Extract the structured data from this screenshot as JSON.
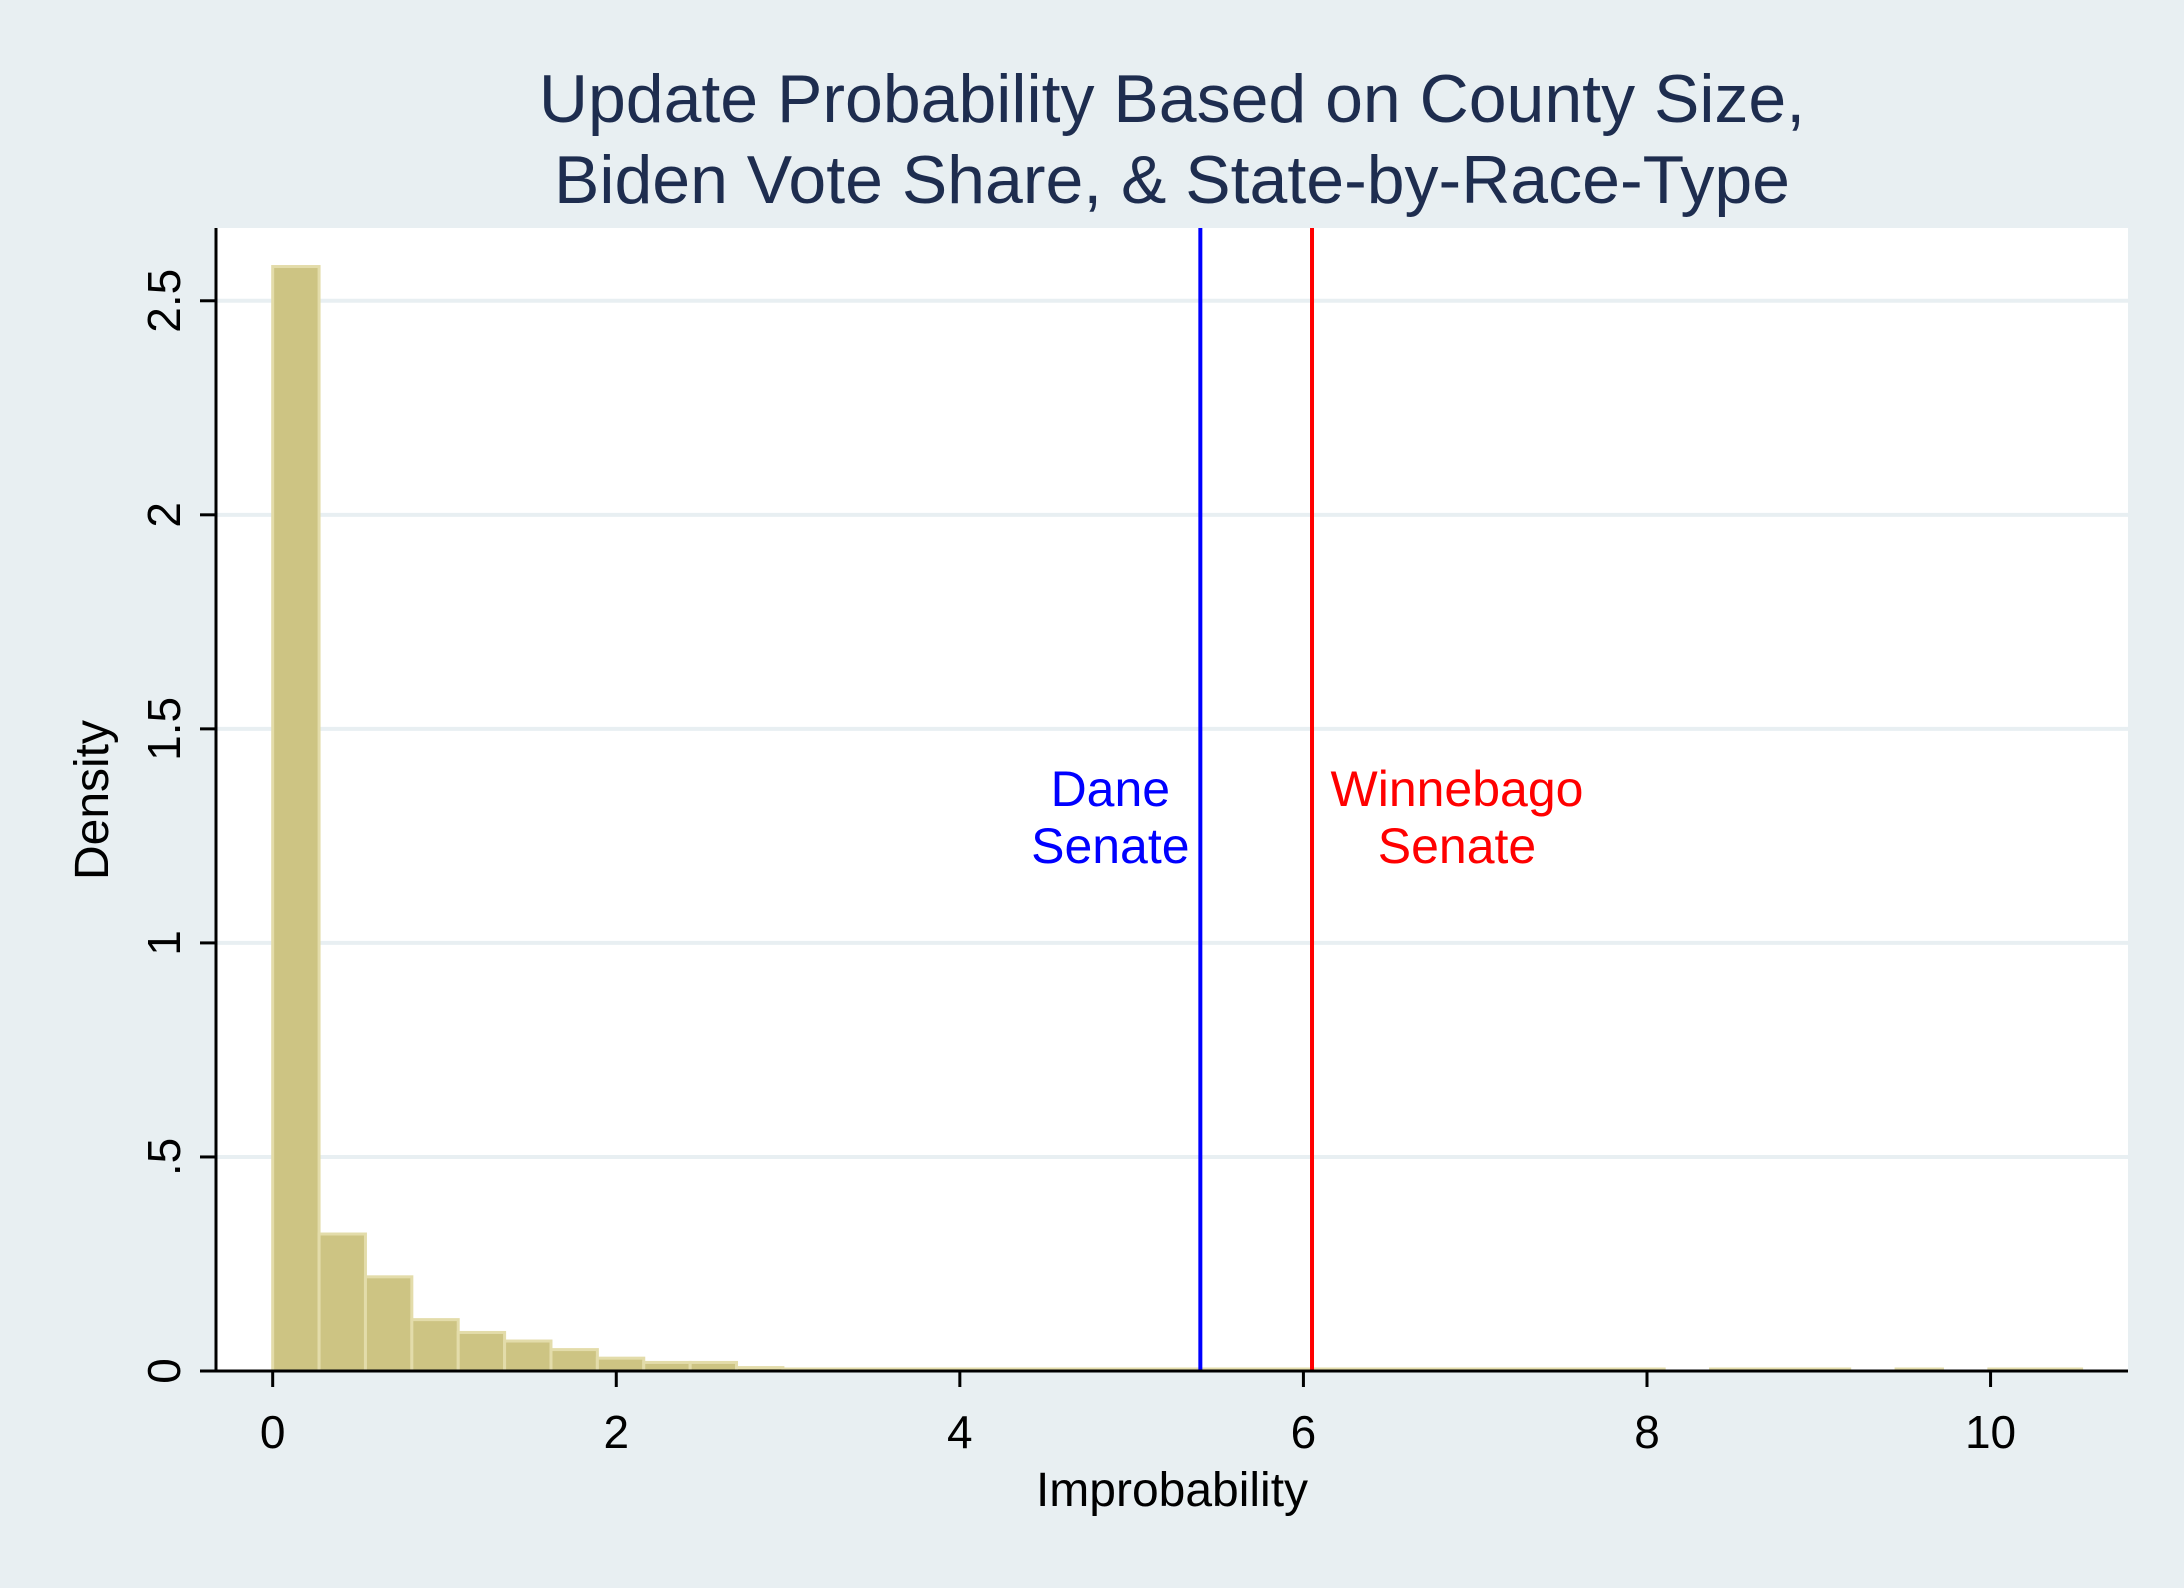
{
  "chart_data": {
    "type": "bar",
    "title_line1": "Update Probability Based on County Size,",
    "title_line2": "Biden Vote Share, & State-by-Race-Type",
    "xlabel": "Improbability",
    "ylabel": "Density",
    "xlim": [
      -0.33,
      10.8
    ],
    "ylim": [
      0,
      2.67
    ],
    "xticks": [
      0,
      2,
      4,
      6,
      8,
      10
    ],
    "xtick_labels": [
      "0",
      "2",
      "4",
      "6",
      "8",
      "10"
    ],
    "yticks": [
      0,
      0.5,
      1,
      1.5,
      2,
      2.5
    ],
    "ytick_labels": [
      "0",
      ".5",
      "1",
      "1.5",
      "2",
      "2.5"
    ],
    "grid": "horizontal",
    "bin_width": 0.27,
    "bins": [
      {
        "start": 0.0,
        "value": 2.58
      },
      {
        "start": 0.27,
        "value": 0.32
      },
      {
        "start": 0.54,
        "value": 0.22
      },
      {
        "start": 0.81,
        "value": 0.12
      },
      {
        "start": 1.08,
        "value": 0.09
      },
      {
        "start": 1.35,
        "value": 0.07
      },
      {
        "start": 1.62,
        "value": 0.05
      },
      {
        "start": 1.89,
        "value": 0.03
      },
      {
        "start": 2.16,
        "value": 0.02
      },
      {
        "start": 2.43,
        "value": 0.02
      },
      {
        "start": 2.7,
        "value": 0.008
      },
      {
        "start": 2.97,
        "value": 0.004
      },
      {
        "start": 3.24,
        "value": 0.004
      },
      {
        "start": 3.51,
        "value": 0.003
      },
      {
        "start": 3.78,
        "value": 0.003
      },
      {
        "start": 4.05,
        "value": 0.003
      },
      {
        "start": 4.32,
        "value": 0.003
      },
      {
        "start": 4.59,
        "value": 0.003
      },
      {
        "start": 4.86,
        "value": 0.003
      },
      {
        "start": 5.13,
        "value": 0.003
      },
      {
        "start": 5.4,
        "value": 0.003
      },
      {
        "start": 5.67,
        "value": 0.003
      },
      {
        "start": 5.94,
        "value": 0.003
      },
      {
        "start": 6.21,
        "value": 0.003
      },
      {
        "start": 6.48,
        "value": 0.003
      },
      {
        "start": 6.75,
        "value": 0.003
      },
      {
        "start": 7.02,
        "value": 0.003
      },
      {
        "start": 7.29,
        "value": 0.003
      },
      {
        "start": 7.56,
        "value": 0.003
      },
      {
        "start": 7.83,
        "value": 0.003
      },
      {
        "start": 8.37,
        "value": 0.003
      },
      {
        "start": 8.64,
        "value": 0.003
      },
      {
        "start": 8.91,
        "value": 0.003
      },
      {
        "start": 9.45,
        "value": 0.003
      },
      {
        "start": 9.99,
        "value": 0.003
      },
      {
        "start": 10.26,
        "value": 0.003
      }
    ],
    "bar_color": "#cdc483",
    "bar_edge_color": "#e3dcaa",
    "reference_lines": [
      {
        "x": 5.4,
        "label_line1": "Dane",
        "label_line2": "Senate",
        "color": "#0000ff",
        "label_side": "left"
      },
      {
        "x": 6.05,
        "label_line1": "Winnebago",
        "label_line2": "Senate",
        "color": "#ff0000",
        "label_side": "right"
      }
    ],
    "background": "#e8eff2",
    "plot_background": "#ffffff",
    "grid_color": "#e8eff2",
    "title_color": "#1e2d4f"
  }
}
